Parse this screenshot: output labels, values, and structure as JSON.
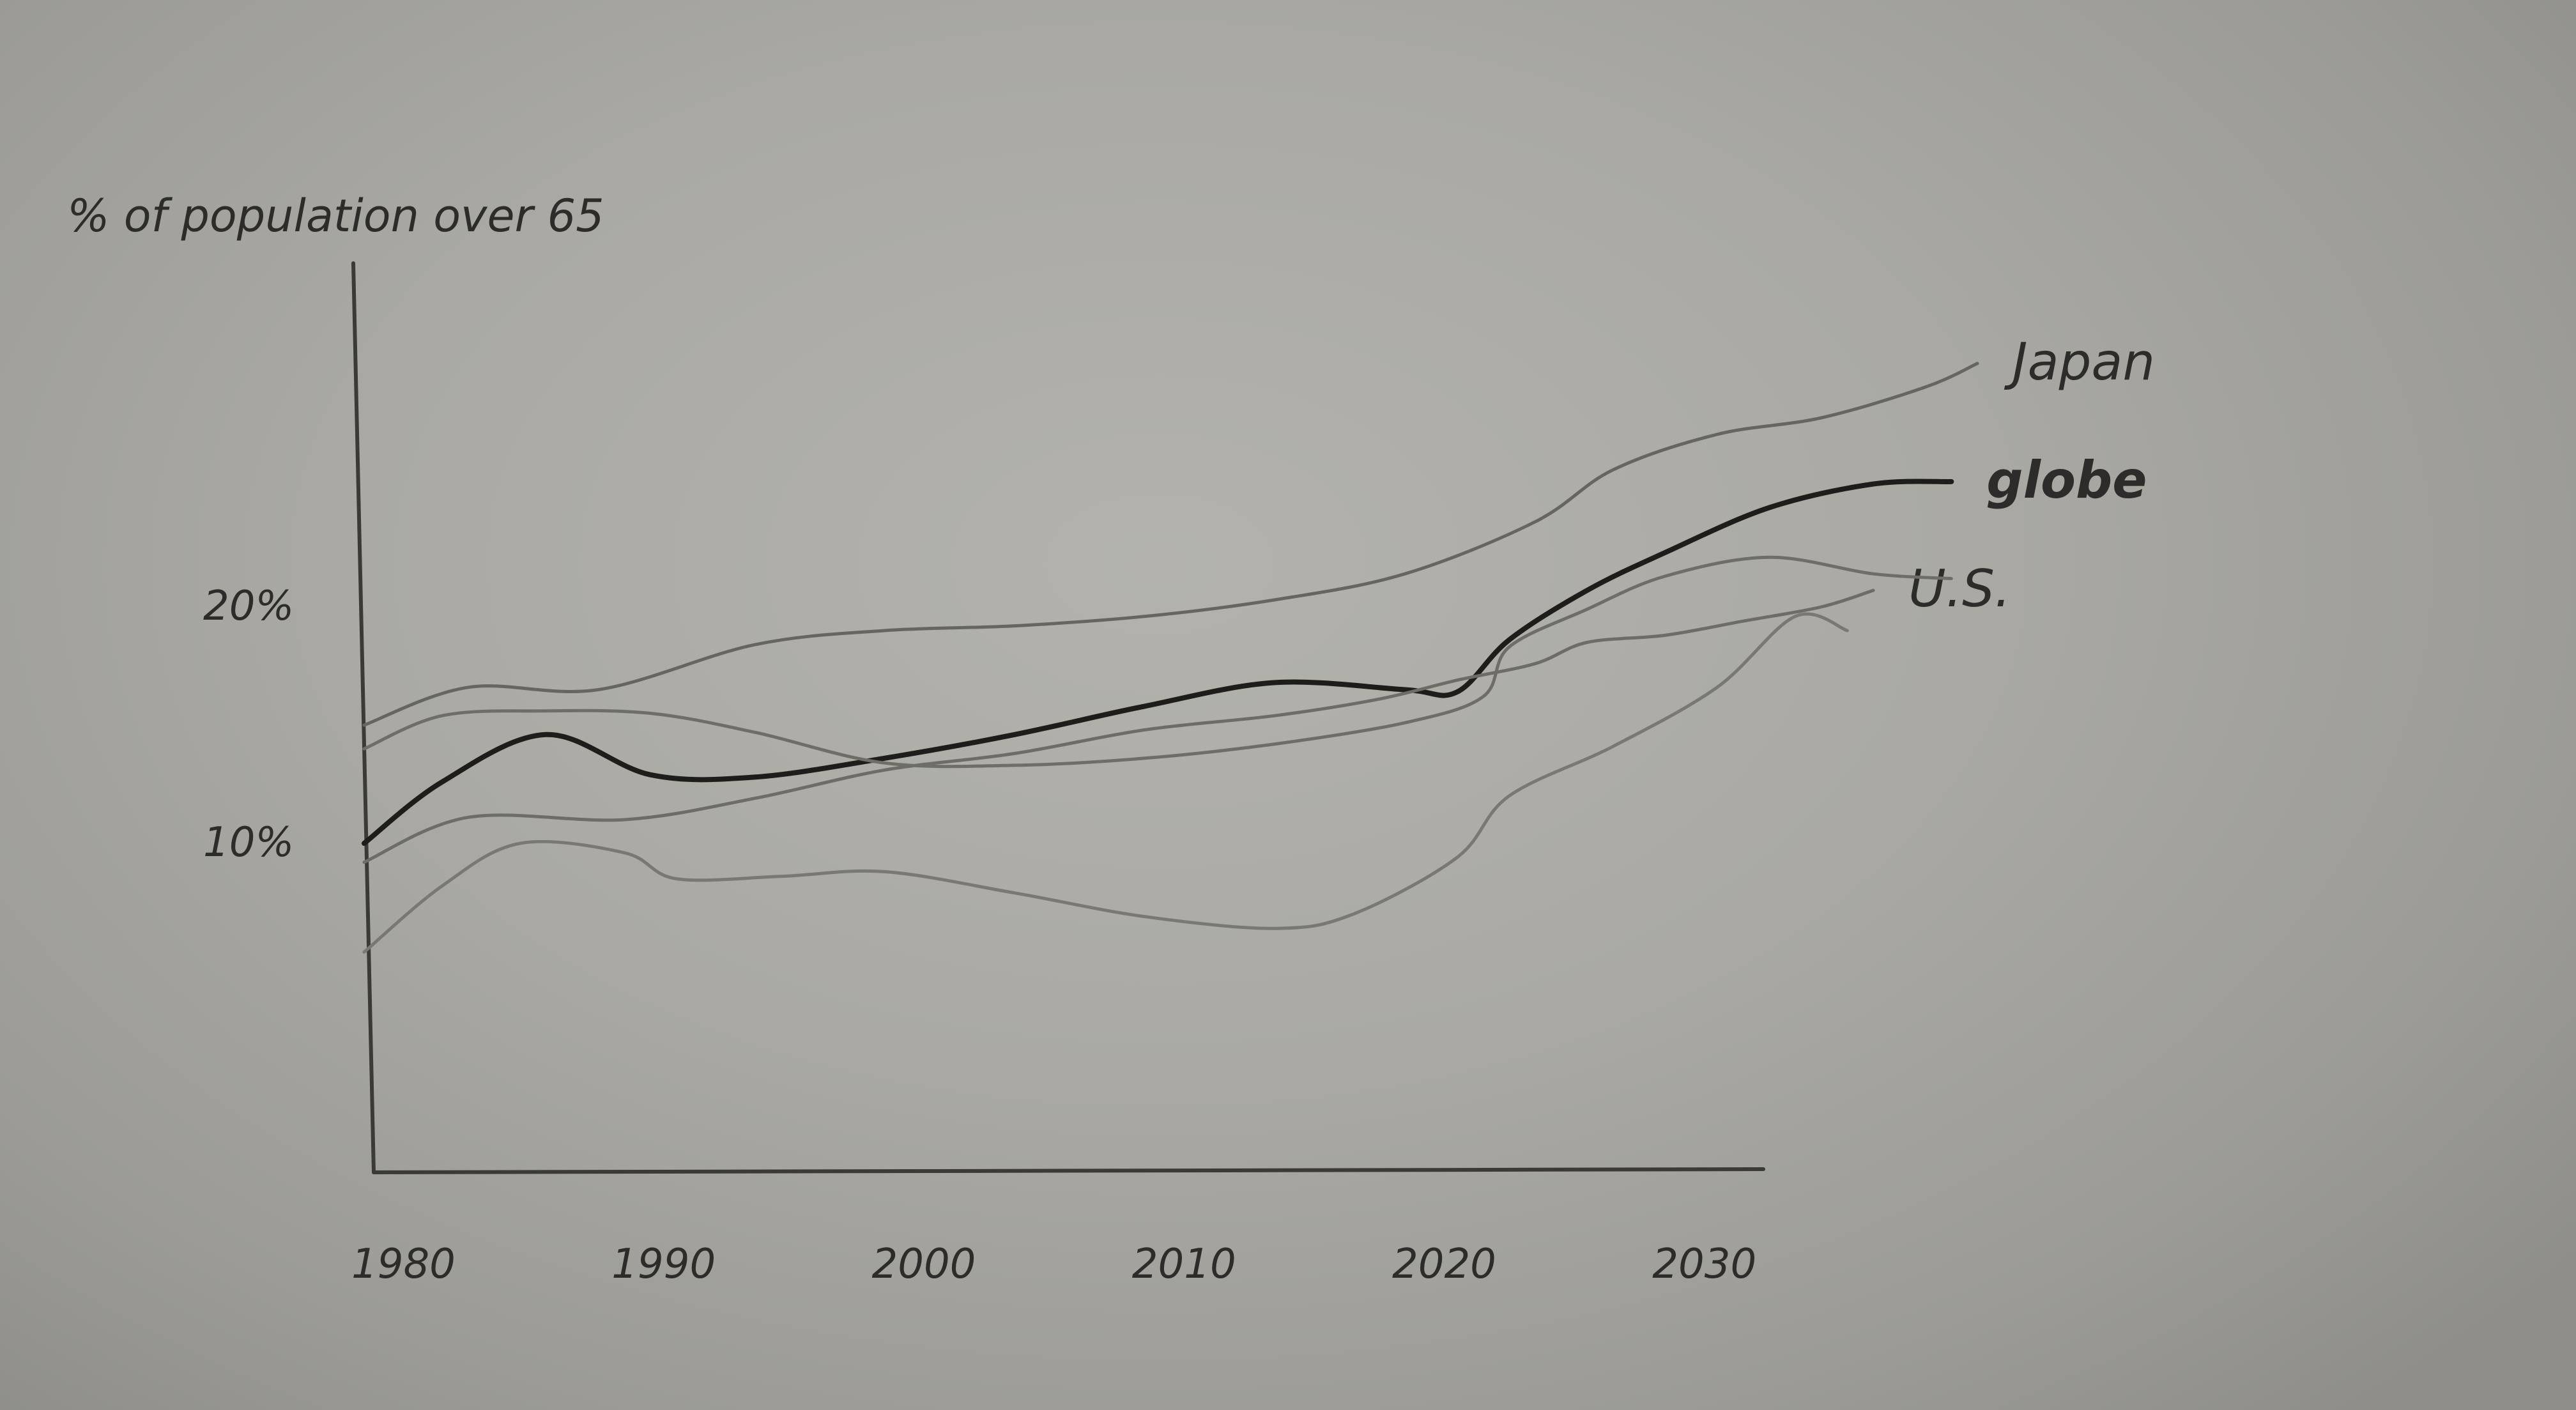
{
  "chart_data": {
    "type": "line",
    "title": "% of population over 65",
    "xlabel": "",
    "ylabel": "",
    "x_ticks": [
      {
        "value": 1980,
        "label": "1980"
      },
      {
        "value": 1990,
        "label": "1990"
      },
      {
        "value": 2000,
        "label": "2000"
      },
      {
        "value": 2010,
        "label": "2010"
      },
      {
        "value": 2020,
        "label": "2020"
      },
      {
        "value": 2030,
        "label": "2030"
      }
    ],
    "y_ticks": [
      {
        "value": 10,
        "label": "10%"
      },
      {
        "value": 20,
        "label": "20%"
      }
    ],
    "xlim": [
      1980,
      2042
    ],
    "ylim": [
      0,
      40
    ],
    "grid": false,
    "series": [
      {
        "name": "Japan",
        "color": "#676560",
        "emphasis": false,
        "points": [
          [
            1980,
            15.0
          ],
          [
            1984,
            16.6
          ],
          [
            1989,
            16.5
          ],
          [
            1995,
            18.4
          ],
          [
            2000,
            19.0
          ],
          [
            2005,
            19.2
          ],
          [
            2010,
            19.6
          ],
          [
            2015,
            20.3
          ],
          [
            2020,
            21.4
          ],
          [
            2025,
            23.6
          ],
          [
            2028,
            25.8
          ],
          [
            2032,
            27.3
          ],
          [
            2036,
            28.0
          ],
          [
            2040,
            29.3
          ],
          [
            2042,
            30.3
          ]
        ]
      },
      {
        "name": "globe",
        "color": "#1e1d1b",
        "emphasis": true,
        "points": [
          [
            1980,
            10.0
          ],
          [
            1983,
            12.6
          ],
          [
            1987,
            14.6
          ],
          [
            1991,
            12.9
          ],
          [
            1995,
            12.8
          ],
          [
            2000,
            13.6
          ],
          [
            2005,
            14.6
          ],
          [
            2010,
            15.8
          ],
          [
            2015,
            16.8
          ],
          [
            2020,
            16.5
          ],
          [
            2022,
            16.4
          ],
          [
            2024,
            18.6
          ],
          [
            2027,
            20.7
          ],
          [
            2030,
            22.3
          ],
          [
            2034,
            24.2
          ],
          [
            2038,
            25.2
          ],
          [
            2041,
            25.3
          ]
        ]
      },
      {
        "name": "U.S.",
        "color": "#6e6c67",
        "emphasis": false,
        "points": [
          [
            1980,
            9.2
          ],
          [
            1984,
            11.1
          ],
          [
            1990,
            11.0
          ],
          [
            1995,
            11.9
          ],
          [
            2000,
            13.1
          ],
          [
            2005,
            13.8
          ],
          [
            2010,
            14.8
          ],
          [
            2015,
            15.4
          ],
          [
            2019,
            16.1
          ],
          [
            2022,
            16.9
          ],
          [
            2025,
            17.6
          ],
          [
            2027,
            18.5
          ],
          [
            2030,
            18.8
          ],
          [
            2033,
            19.4
          ],
          [
            2036,
            20.0
          ],
          [
            2038,
            20.7
          ]
        ]
      },
      {
        "name": "",
        "color": "#6f6d68",
        "emphasis": false,
        "points": [
          [
            1980,
            14.0
          ],
          [
            1983,
            15.4
          ],
          [
            1987,
            15.6
          ],
          [
            1991,
            15.5
          ],
          [
            1995,
            14.7
          ],
          [
            2000,
            13.4
          ],
          [
            2005,
            13.3
          ],
          [
            2010,
            13.6
          ],
          [
            2015,
            14.2
          ],
          [
            2020,
            15.1
          ],
          [
            2023,
            16.2
          ],
          [
            2024,
            18.3
          ],
          [
            2027,
            19.9
          ],
          [
            2030,
            21.3
          ],
          [
            2034,
            22.1
          ],
          [
            2038,
            21.4
          ],
          [
            2041,
            21.2
          ]
        ]
      },
      {
        "name": "",
        "color": "#7a7873",
        "emphasis": false,
        "points": [
          [
            1980,
            5.4
          ],
          [
            1983,
            8.2
          ],
          [
            1986,
            10.0
          ],
          [
            1990,
            9.6
          ],
          [
            1992,
            8.5
          ],
          [
            1996,
            8.6
          ],
          [
            2000,
            8.8
          ],
          [
            2005,
            7.9
          ],
          [
            2010,
            6.9
          ],
          [
            2015,
            6.4
          ],
          [
            2018,
            7.0
          ],
          [
            2022,
            9.4
          ],
          [
            2024,
            12.0
          ],
          [
            2028,
            14.1
          ],
          [
            2032,
            16.6
          ],
          [
            2035,
            19.6
          ],
          [
            2037,
            19.0
          ]
        ]
      }
    ]
  }
}
